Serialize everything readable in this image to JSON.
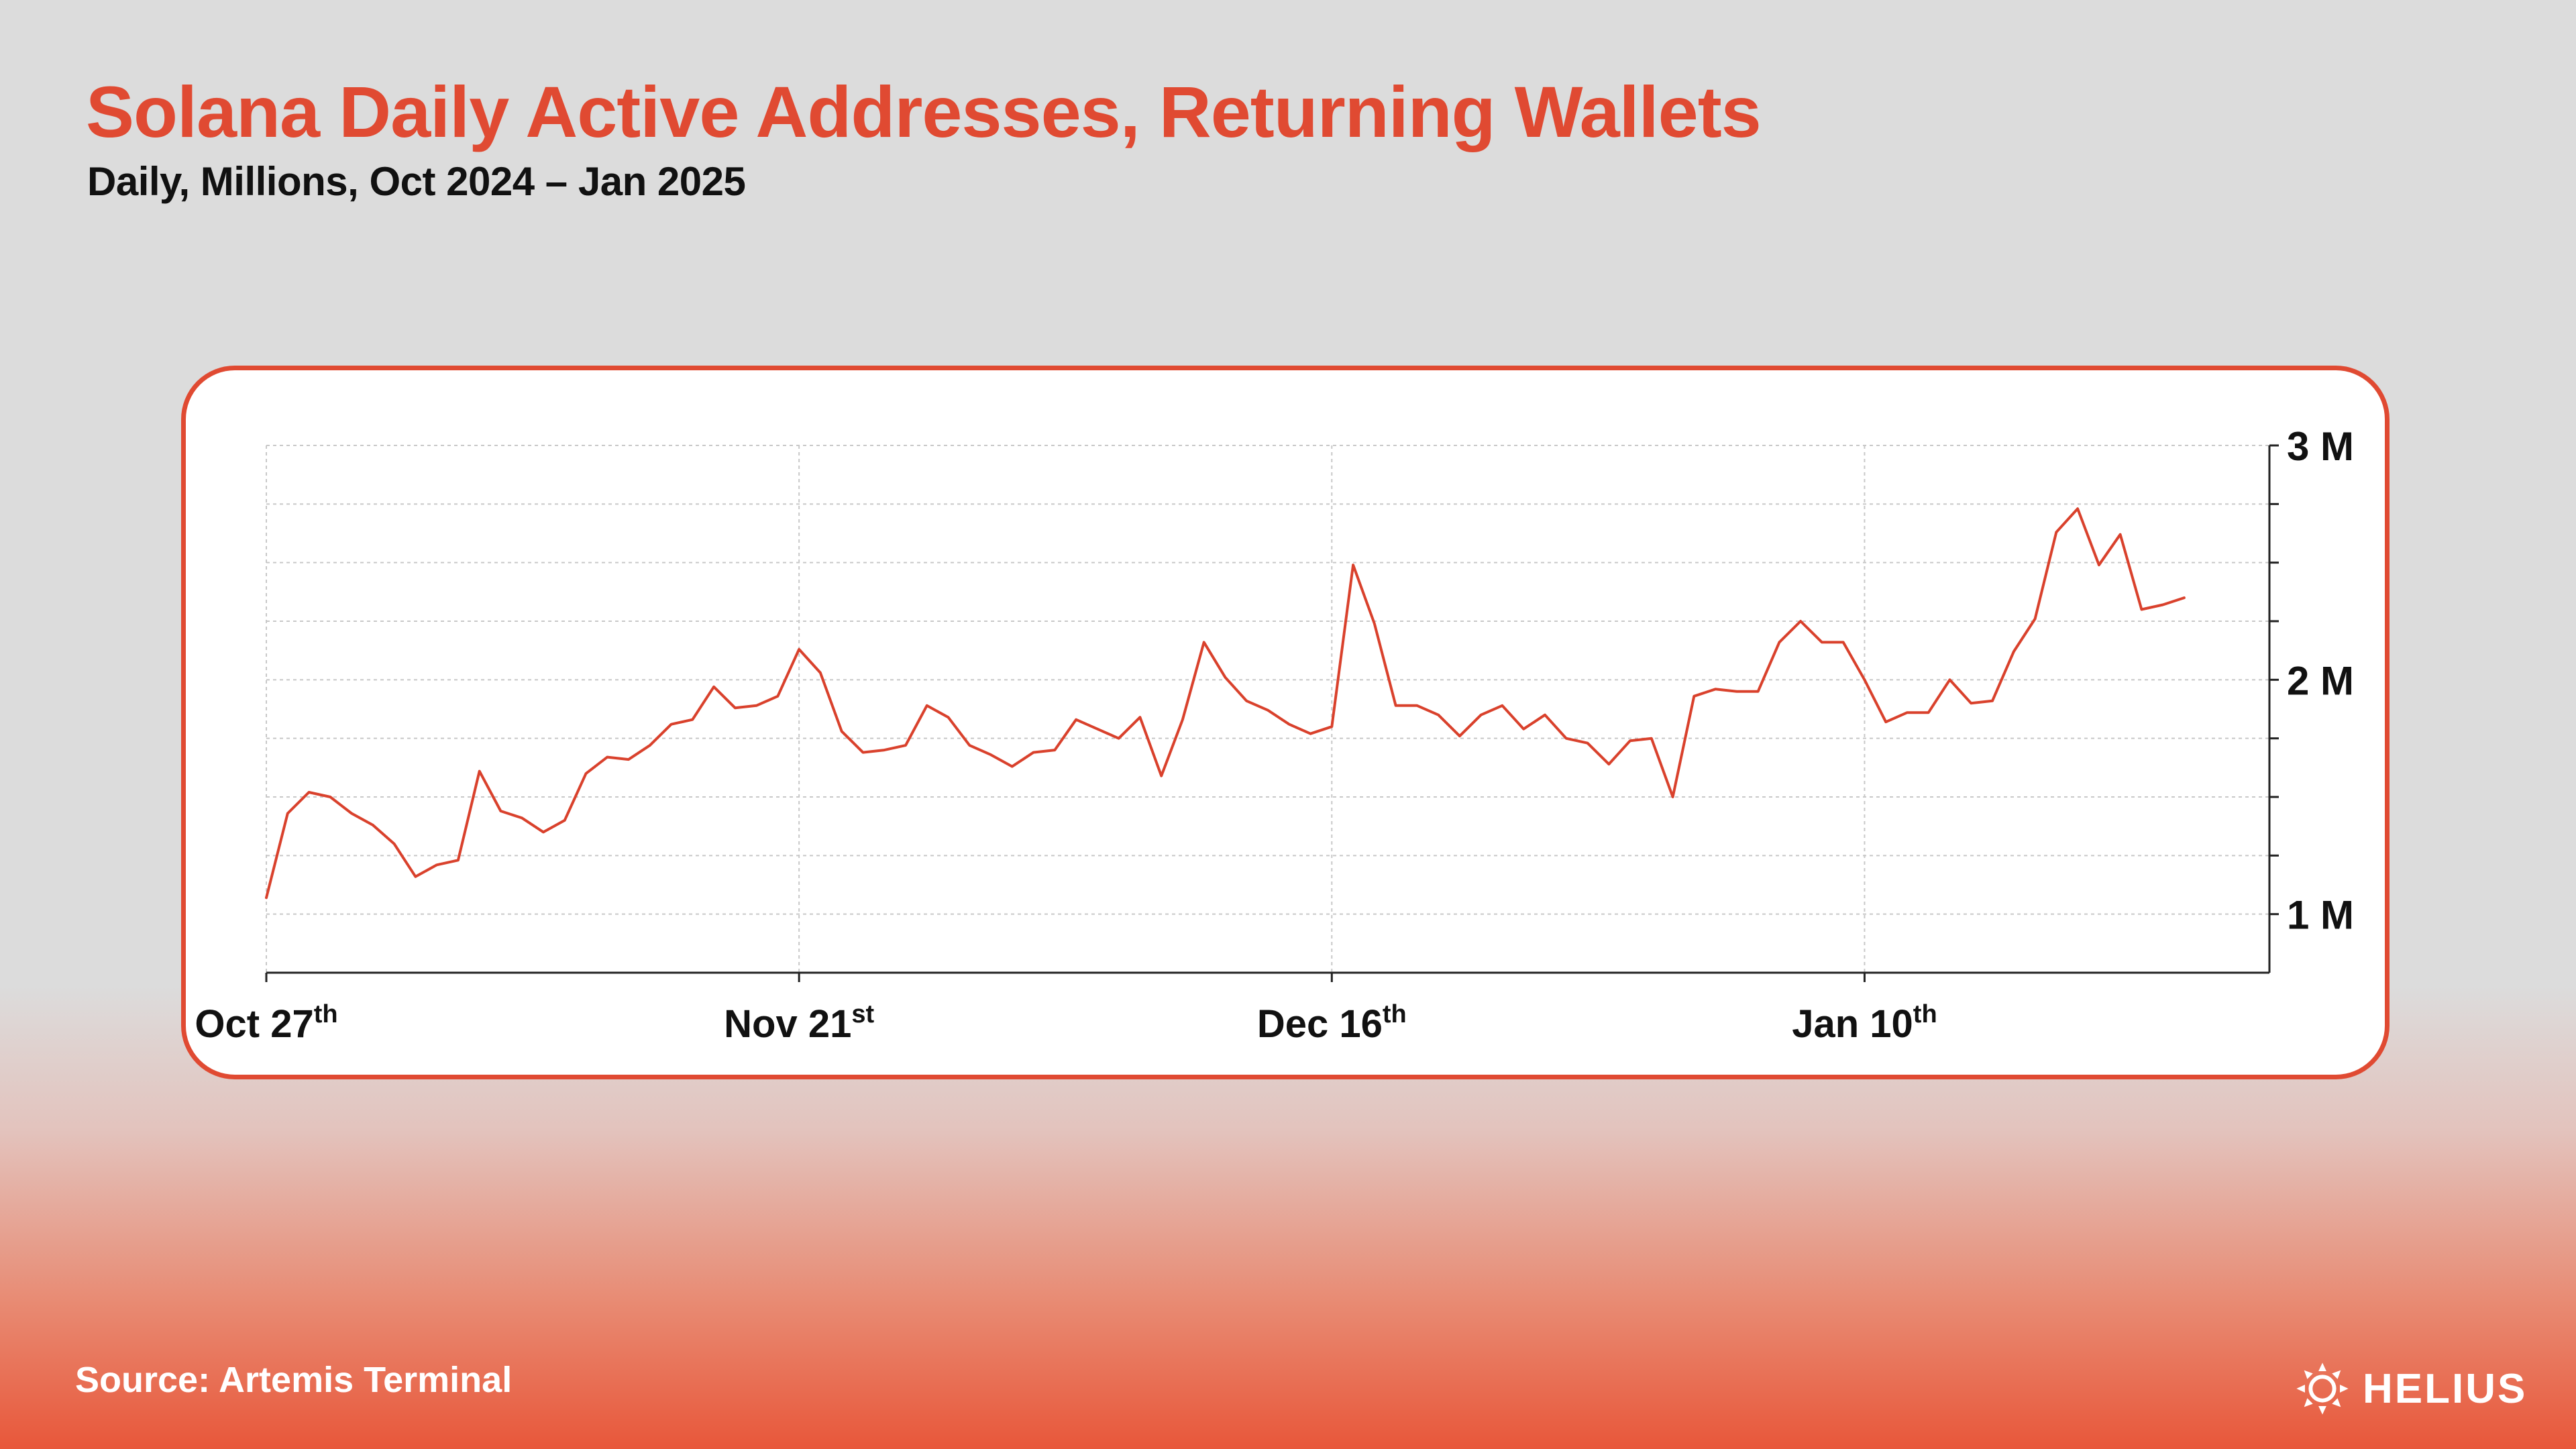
{
  "header": {
    "title": "Solana Daily Active Addresses, Returning Wallets",
    "subtitle": "Daily, Millions, Oct 2024 – Jan 2025"
  },
  "footer": {
    "source": "Source: Artemis Terminal",
    "brand": "HELIUS",
    "brand_icon": "helius-sun-icon"
  },
  "colors": {
    "accent": "#e04a32",
    "line": "#d9412c",
    "text": "#111111",
    "grid": "#c8c8c8"
  },
  "chart_data": {
    "type": "line",
    "x_start": "2024-10-27",
    "x_end": "2025-01-29",
    "ylim": [
      0.75,
      3.0
    ],
    "y_ticks": [
      1,
      2,
      3
    ],
    "y_tick_labels": [
      "1 M",
      "2 M",
      "3 M"
    ],
    "y_minor_ticks": [
      1.25,
      1.5,
      1.75,
      2.25,
      2.5,
      2.75
    ],
    "grid": true,
    "legend": "none",
    "x_tick_labels": [
      {
        "x": "2024-10-27",
        "main": "Oct 27",
        "sup": "th"
      },
      {
        "x": "2024-11-21",
        "main": "Nov 21",
        "sup": "st"
      },
      {
        "x": "2024-12-16",
        "main": "Dec 16",
        "sup": "th"
      },
      {
        "x": "2025-01-10",
        "main": "Jan 10",
        "sup": "th"
      }
    ],
    "series": [
      {
        "values": [
          1.07,
          1.43,
          1.52,
          1.5,
          1.43,
          1.38,
          1.3,
          1.16,
          1.21,
          1.23,
          1.61,
          1.44,
          1.41,
          1.35,
          1.4,
          1.6,
          1.67,
          1.66,
          1.72,
          1.81,
          1.83,
          1.97,
          1.88,
          1.89,
          1.93,
          2.13,
          2.03,
          1.78,
          1.69,
          1.7,
          1.72,
          1.89,
          1.84,
          1.72,
          1.68,
          1.63,
          1.69,
          1.7,
          1.83,
          1.79,
          1.75,
          1.84,
          1.59,
          1.83,
          2.16,
          2.01,
          1.91,
          1.87,
          1.81,
          1.77,
          1.8,
          2.49,
          2.24,
          1.89,
          1.89,
          1.85,
          1.76,
          1.85,
          1.89,
          1.79,
          1.85,
          1.75,
          1.73,
          1.64,
          1.74,
          1.75,
          1.5,
          1.93,
          1.96,
          1.95,
          1.95,
          2.16,
          2.25,
          2.16,
          2.16,
          2.0,
          1.82,
          1.86,
          1.86,
          2.0,
          1.9,
          1.91,
          2.12,
          2.26,
          2.63,
          2.73,
          2.49,
          2.62,
          2.3,
          2.32,
          2.35
        ]
      }
    ]
  }
}
